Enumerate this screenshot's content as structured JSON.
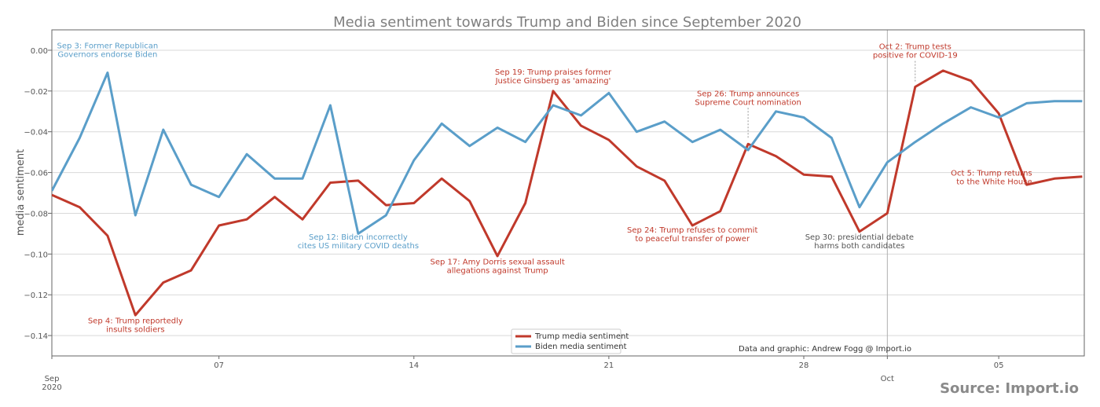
{
  "colors": {
    "trump": "#c0392b",
    "biden": "#5a9ec9",
    "grid": "#d9d9d9",
    "axis": "#666666"
  },
  "credit": "Data and graphic: Andrew Fogg @ Import.io",
  "source": "Source: Import.io",
  "chart_data": {
    "type": "line",
    "title": "Media sentiment towards Trump and Biden since September 2020",
    "xlabel": "",
    "ylabel": "media sentiment",
    "x": [
      "2020-09-01",
      "2020-09-02",
      "2020-09-03",
      "2020-09-04",
      "2020-09-05",
      "2020-09-06",
      "2020-09-07",
      "2020-09-08",
      "2020-09-09",
      "2020-09-10",
      "2020-09-11",
      "2020-09-12",
      "2020-09-13",
      "2020-09-14",
      "2020-09-15",
      "2020-09-16",
      "2020-09-17",
      "2020-09-18",
      "2020-09-19",
      "2020-09-20",
      "2020-09-21",
      "2020-09-22",
      "2020-09-23",
      "2020-09-24",
      "2020-09-25",
      "2020-09-26",
      "2020-09-27",
      "2020-09-28",
      "2020-09-29",
      "2020-09-30",
      "2020-10-01",
      "2020-10-02",
      "2020-10-03",
      "2020-10-04",
      "2020-10-05",
      "2020-10-06",
      "2020-10-07",
      "2020-10-08"
    ],
    "ylim": [
      -0.15,
      0.01
    ],
    "xlim": [
      "2020-09-01",
      "2020-10-07"
    ],
    "yticks": [
      "0.00",
      "−0.02",
      "−0.04",
      "−0.06",
      "−0.08",
      "−0.10",
      "−0.12",
      "−0.14"
    ],
    "xticks": [
      {
        "date": "2020-09-01",
        "label": "Sep",
        "sub": "2020"
      },
      {
        "date": "2020-09-07",
        "label": "07",
        "sub": ""
      },
      {
        "date": "2020-09-14",
        "label": "14",
        "sub": ""
      },
      {
        "date": "2020-09-21",
        "label": "21",
        "sub": ""
      },
      {
        "date": "2020-09-28",
        "label": "28",
        "sub": ""
      },
      {
        "date": "2020-10-01",
        "label": "Oct",
        "sub": ""
      },
      {
        "date": "2020-10-05",
        "label": "05",
        "sub": ""
      }
    ],
    "grid": true,
    "legend_position": "bottom-center",
    "series": [
      {
        "name": "Trump media sentiment",
        "color": "#c0392b",
        "values": [
          -0.071,
          -0.077,
          -0.091,
          -0.13,
          -0.114,
          -0.108,
          -0.086,
          -0.083,
          -0.072,
          -0.083,
          -0.065,
          -0.064,
          -0.076,
          -0.075,
          -0.063,
          -0.074,
          -0.101,
          -0.075,
          -0.02,
          -0.037,
          -0.044,
          -0.057,
          -0.064,
          -0.086,
          -0.079,
          -0.046,
          -0.052,
          -0.061,
          -0.062,
          -0.089,
          -0.08,
          -0.018,
          -0.01,
          -0.015,
          -0.031,
          -0.066,
          -0.063,
          -0.062
        ]
      },
      {
        "name": "Biden media sentiment",
        "color": "#5a9ec9",
        "values": [
          -0.069,
          -0.043,
          -0.011,
          -0.081,
          -0.039,
          -0.066,
          -0.072,
          -0.051,
          -0.063,
          -0.063,
          -0.027,
          -0.09,
          -0.081,
          -0.054,
          -0.036,
          -0.047,
          -0.038,
          -0.045,
          -0.027,
          -0.032,
          -0.021,
          -0.04,
          -0.035,
          -0.045,
          -0.039,
          -0.049,
          -0.03,
          -0.033,
          -0.043,
          -0.077,
          -0.055,
          -0.045,
          -0.036,
          -0.028,
          -0.033,
          -0.026,
          -0.025,
          -0.025
        ]
      }
    ],
    "annotations": [
      {
        "lines": [
          "Sep 3: Former Republican",
          "Governors endorse Biden"
        ],
        "color": "#5a9ec9",
        "date": "2020-09-03",
        "y": 0.001
      },
      {
        "lines": [
          "Sep 4: Trump reportedly",
          "insults soldiers"
        ],
        "color": "#c0392b",
        "date": "2020-09-04",
        "y": -0.134
      },
      {
        "lines": [
          "Sep 12: Biden incorrectly",
          "cites US military COVID deaths"
        ],
        "color": "#5a9ec9",
        "date": "2020-09-12",
        "y": -0.093
      },
      {
        "lines": [
          "Sep 17: Amy Dorris sexual assault",
          "allegations against Trump"
        ],
        "color": "#c0392b",
        "date": "2020-09-17",
        "y": -0.105
      },
      {
        "lines": [
          "Sep 19: Trump praises former",
          "Justice Ginsberg as 'amazing'"
        ],
        "color": "#c0392b",
        "date": "2020-09-19",
        "y": -0.012
      },
      {
        "lines": [
          "Sep 24: Trump refuses to commit",
          "to peaceful transfer of power"
        ],
        "color": "#c0392b",
        "date": "2020-09-24",
        "y": -0.0895
      },
      {
        "lines": [
          "Sep 26: Trump announces",
          "Supreme Court nomination"
        ],
        "color": "#c0392b",
        "date": "2020-09-26",
        "y": -0.0225,
        "pointer_to": -0.043
      },
      {
        "lines": [
          "Sep 30: presidential debate",
          "harms both candidates"
        ],
        "color": "#555555",
        "date": "2020-09-30",
        "y": -0.093
      },
      {
        "lines": [
          "Oct 2: Trump tests",
          "positive for COVID-19"
        ],
        "color": "#c0392b",
        "date": "2020-10-02",
        "y": 0.0005,
        "pointer_to": -0.016
      },
      {
        "lines": [
          "Oct 5: Trump returns",
          "to the White House"
        ],
        "color": "#c0392b",
        "date": "2020-10-05",
        "y": -0.0615,
        "anchor": "end",
        "dx": 1.2
      }
    ],
    "vline_date": "2020-10-01"
  }
}
